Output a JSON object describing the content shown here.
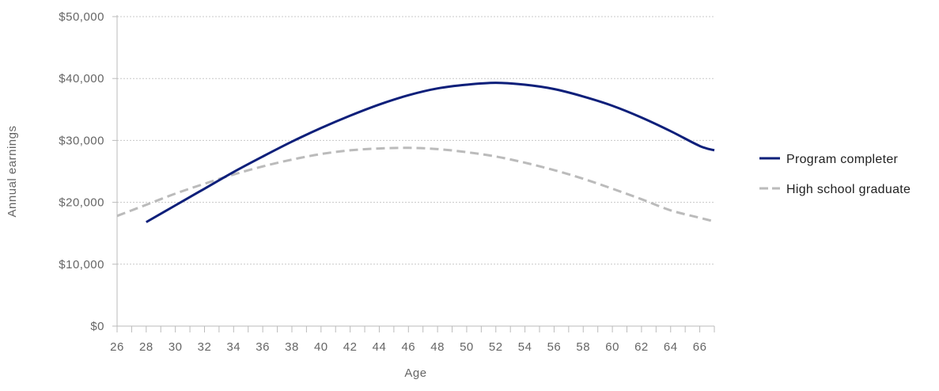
{
  "chart_data": {
    "type": "line",
    "xlabel": "Age",
    "ylabel": "Annual earnings",
    "xlim": [
      26,
      67
    ],
    "ylim": [
      0,
      50000
    ],
    "x_ticks": [
      26,
      28,
      30,
      32,
      34,
      36,
      38,
      40,
      42,
      44,
      46,
      48,
      50,
      52,
      54,
      56,
      58,
      60,
      62,
      64,
      66
    ],
    "y_ticks": [
      {
        "value": 0,
        "label": "$0"
      },
      {
        "value": 10000,
        "label": "$10,000"
      },
      {
        "value": 20000,
        "label": "$20,000"
      },
      {
        "value": 30000,
        "label": "$30,000"
      },
      {
        "value": 40000,
        "label": "$40,000"
      },
      {
        "value": 50000,
        "label": "$50,000"
      }
    ],
    "grid": "horizontal dotted",
    "legend_position": "right",
    "series": [
      {
        "name": "Program completer",
        "color": "#0d1f7a",
        "style": "solid",
        "x": [
          28,
          30,
          32,
          34,
          36,
          38,
          40,
          42,
          44,
          46,
          48,
          50,
          52,
          54,
          56,
          58,
          60,
          62,
          64,
          66,
          67
        ],
        "y": [
          16800,
          19500,
          22200,
          24900,
          27400,
          29800,
          32000,
          34000,
          35800,
          37300,
          38400,
          39000,
          39300,
          39000,
          38300,
          37100,
          35600,
          33700,
          31500,
          29100,
          28400
        ]
      },
      {
        "name": "High school graduate",
        "color": "#bbbbbb",
        "style": "dashed",
        "x": [
          26,
          28,
          30,
          32,
          34,
          36,
          38,
          40,
          42,
          44,
          46,
          48,
          50,
          52,
          54,
          56,
          58,
          60,
          62,
          64,
          66,
          67
        ],
        "y": [
          17800,
          19600,
          21400,
          23000,
          24500,
          25800,
          26900,
          27800,
          28400,
          28700,
          28800,
          28600,
          28100,
          27400,
          26400,
          25200,
          23800,
          22200,
          20500,
          18700,
          17500,
          16900
        ]
      }
    ]
  }
}
